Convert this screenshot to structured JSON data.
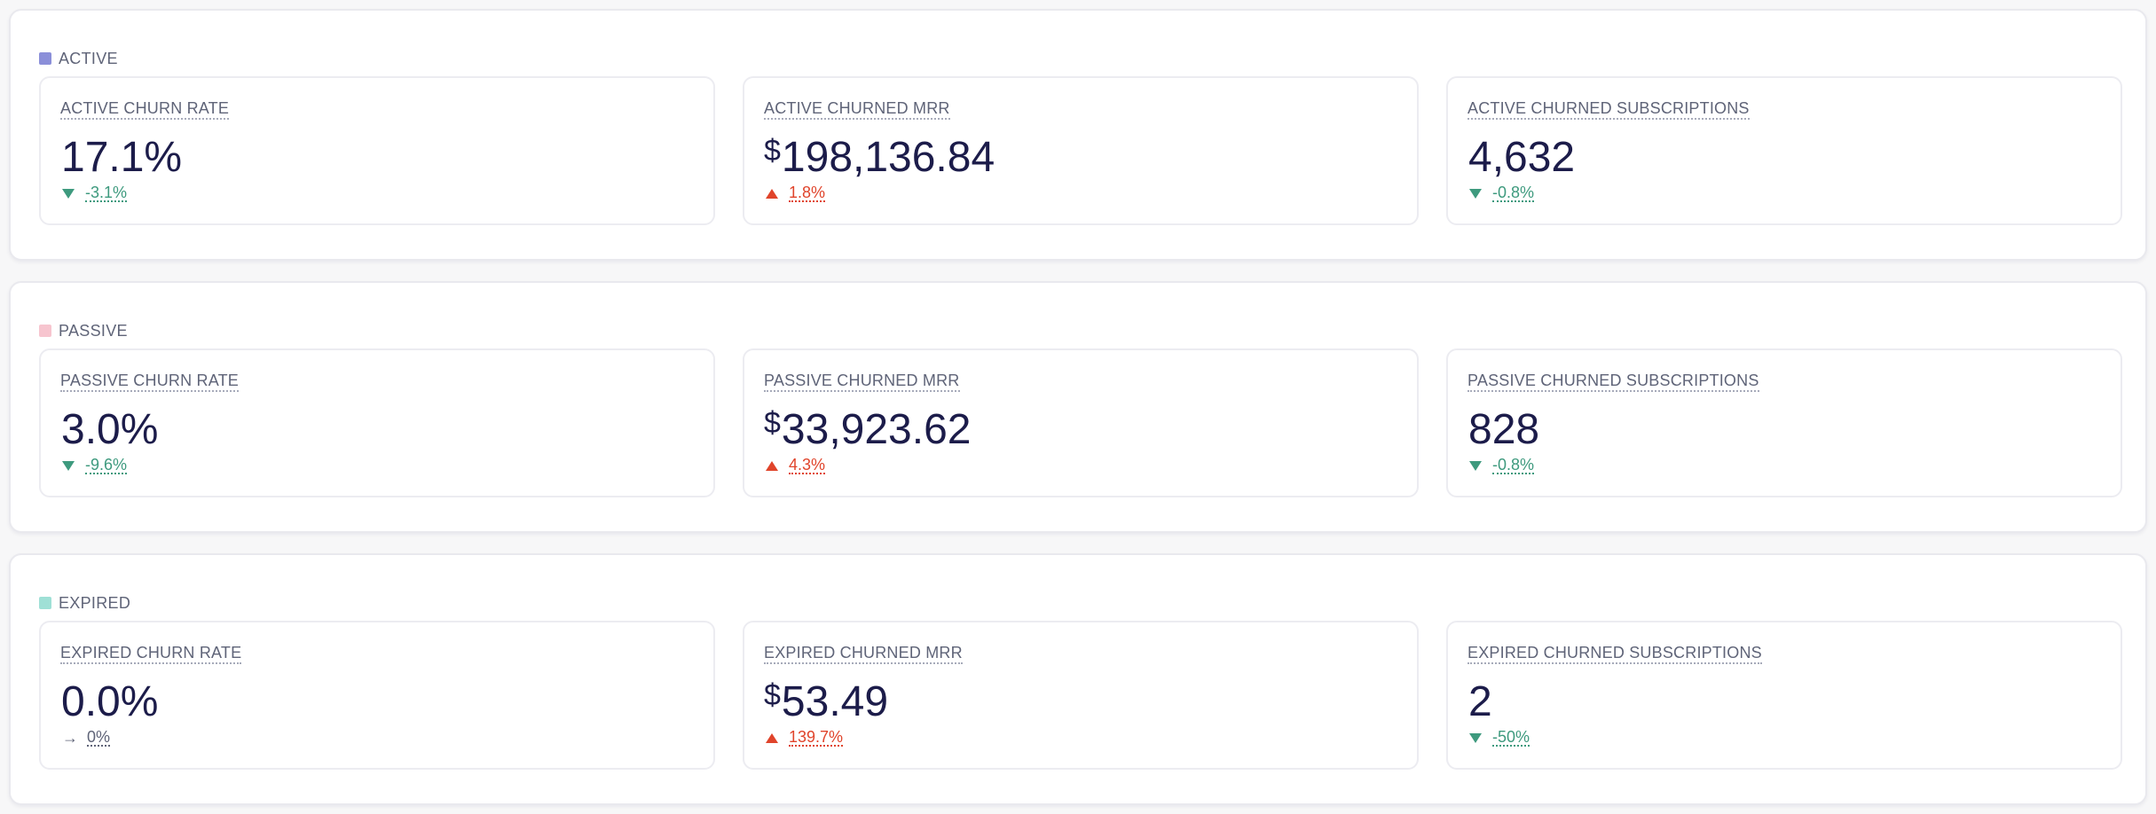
{
  "colors": {
    "active": "#8b8fd9",
    "passive": "#f7c5cf",
    "expired": "#9fe0d6",
    "good": "#3e9a7e",
    "bad": "#e0442b"
  },
  "sections": [
    {
      "title": "ACTIVE",
      "metrics": [
        {
          "label": "ACTIVE CHURN RATE",
          "currency": "",
          "value": "17.1%",
          "change": "-3.1%",
          "direction": "down",
          "tone": "good",
          "arrow_icon": "triangle-down-icon"
        },
        {
          "label": "ACTIVE CHURNED MRR",
          "currency": "$",
          "value": "198,136.84",
          "change": "1.8%",
          "direction": "up",
          "tone": "bad",
          "arrow_icon": "triangle-up-icon"
        },
        {
          "label": "ACTIVE CHURNED SUBSCRIPTIONS",
          "currency": "",
          "value": "4,632",
          "change": "-0.8%",
          "direction": "down",
          "tone": "good",
          "arrow_icon": "triangle-down-icon"
        }
      ]
    },
    {
      "title": "PASSIVE",
      "metrics": [
        {
          "label": "PASSIVE CHURN RATE",
          "currency": "",
          "value": "3.0%",
          "change": "-9.6%",
          "direction": "down",
          "tone": "good",
          "arrow_icon": "triangle-down-icon"
        },
        {
          "label": "PASSIVE CHURNED MRR",
          "currency": "$",
          "value": "33,923.62",
          "change": "4.3%",
          "direction": "up",
          "tone": "bad",
          "arrow_icon": "triangle-up-icon"
        },
        {
          "label": "PASSIVE CHURNED SUBSCRIPTIONS",
          "currency": "",
          "value": "828",
          "change": "-0.8%",
          "direction": "down",
          "tone": "good",
          "arrow_icon": "triangle-down-icon"
        }
      ]
    },
    {
      "title": "EXPIRED",
      "metrics": [
        {
          "label": "EXPIRED CHURN RATE",
          "currency": "",
          "value": "0.0%",
          "change": "0%",
          "direction": "flat",
          "tone": "neutral",
          "arrow_icon": "arrow-right-icon"
        },
        {
          "label": "EXPIRED CHURNED MRR",
          "currency": "$",
          "value": "53.49",
          "change": "139.7%",
          "direction": "up",
          "tone": "bad",
          "arrow_icon": "triangle-up-icon"
        },
        {
          "label": "EXPIRED CHURNED SUBSCRIPTIONS",
          "currency": "",
          "value": "2",
          "change": "-50%",
          "direction": "down",
          "tone": "good",
          "arrow_icon": "triangle-down-icon"
        }
      ]
    }
  ]
}
